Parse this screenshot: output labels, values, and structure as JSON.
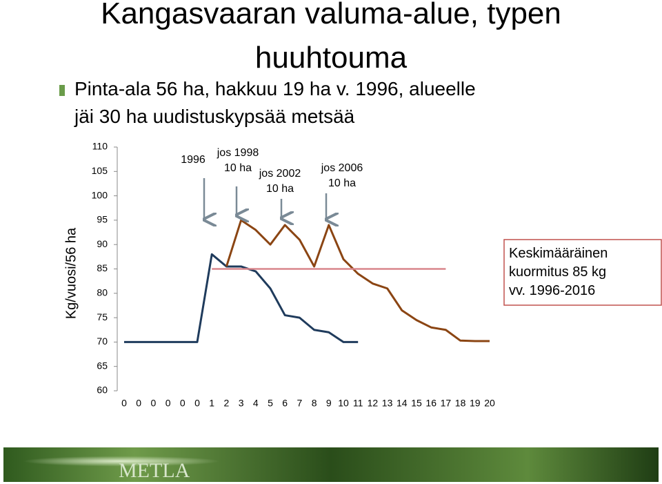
{
  "title": "Kangasvaaran valuma-alue, typen huuhtouma",
  "bullet": "Pinta-ala 56 ha, hakkuu 19 ha v. 1996, alueelle jäi 30 ha uudistuskypsää metsää",
  "footer": {
    "logo": "METLA"
  },
  "chart_data": {
    "type": "line",
    "y_label": "Kg/vuosi/56 ha",
    "categories": [
      "0",
      "0",
      "0",
      "0",
      "0",
      "0",
      "1",
      "2",
      "3",
      "4",
      "5",
      "6",
      "7",
      "8",
      "9",
      "10",
      "11",
      "12",
      "13",
      "14",
      "15",
      "16",
      "17",
      "18",
      "19",
      "20"
    ],
    "ylim": [
      60,
      110
    ],
    "yticks": [
      60,
      65,
      70,
      75,
      80,
      85,
      90,
      95,
      100,
      105,
      110
    ],
    "series": [
      {
        "color": "#1f3b5c",
        "values": [
          70,
          70,
          70,
          70,
          70,
          70,
          88,
          85.5,
          85.5,
          84.5,
          81,
          75.5,
          75,
          72.5,
          72,
          70,
          70,
          null,
          null,
          null,
          null,
          null,
          null,
          null,
          null,
          null
        ]
      },
      {
        "color": "#8b4513",
        "values": [
          null,
          null,
          null,
          null,
          null,
          null,
          null,
          85.5,
          95,
          93,
          90,
          94,
          91,
          85.5,
          94,
          87,
          84,
          82,
          81,
          76.5,
          74.5,
          73,
          72.5,
          70.3,
          70.2,
          70.2
        ]
      },
      {
        "name": "Keskimääräinen kuormitus 85 kg vv. 1996-2016",
        "color": "#d9868c",
        "values": [
          null,
          null,
          null,
          null,
          null,
          null,
          85,
          85,
          85,
          85,
          85,
          85,
          85,
          85,
          85,
          85,
          85,
          85,
          85,
          85,
          85,
          85,
          85,
          null,
          null,
          null
        ]
      }
    ],
    "annotations": [
      {
        "lines": [
          "1996"
        ]
      },
      {
        "lines": [
          "jos 1998",
          "10 ha"
        ]
      },
      {
        "lines": [
          "jos 2002",
          "10 ha"
        ]
      },
      {
        "lines": [
          "jos 2006",
          "10 ha"
        ]
      }
    ]
  }
}
